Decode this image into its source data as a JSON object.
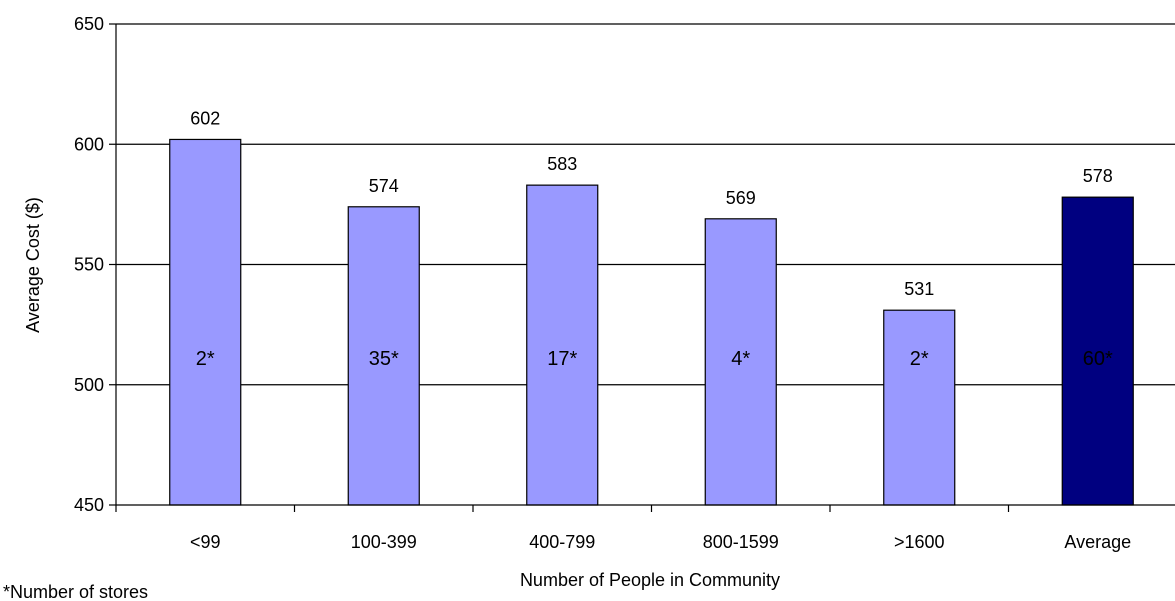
{
  "chart_data": {
    "type": "bar",
    "title": "",
    "xlabel": "Number of People in Community",
    "ylabel": "Average Cost ($)",
    "ylim": [
      450,
      650
    ],
    "yticks": [
      450,
      500,
      550,
      600,
      650
    ],
    "grid": true,
    "categories": [
      "<99",
      "100-399",
      "400-799",
      "800-1599",
      ">1600",
      "Average"
    ],
    "values": [
      602,
      574,
      583,
      569,
      531,
      578
    ],
    "store_counts": [
      "2*",
      "35*",
      "17*",
      "4*",
      "2*",
      "60*"
    ],
    "colors": [
      "#9999FF",
      "#9999FF",
      "#9999FF",
      "#9999FF",
      "#9999FF",
      "#000080"
    ],
    "count_label_colors": [
      "#000000",
      "#000000",
      "#000000",
      "#000000",
      "#000000",
      "#FFFFFF"
    ],
    "footnote": "*Number of stores"
  }
}
